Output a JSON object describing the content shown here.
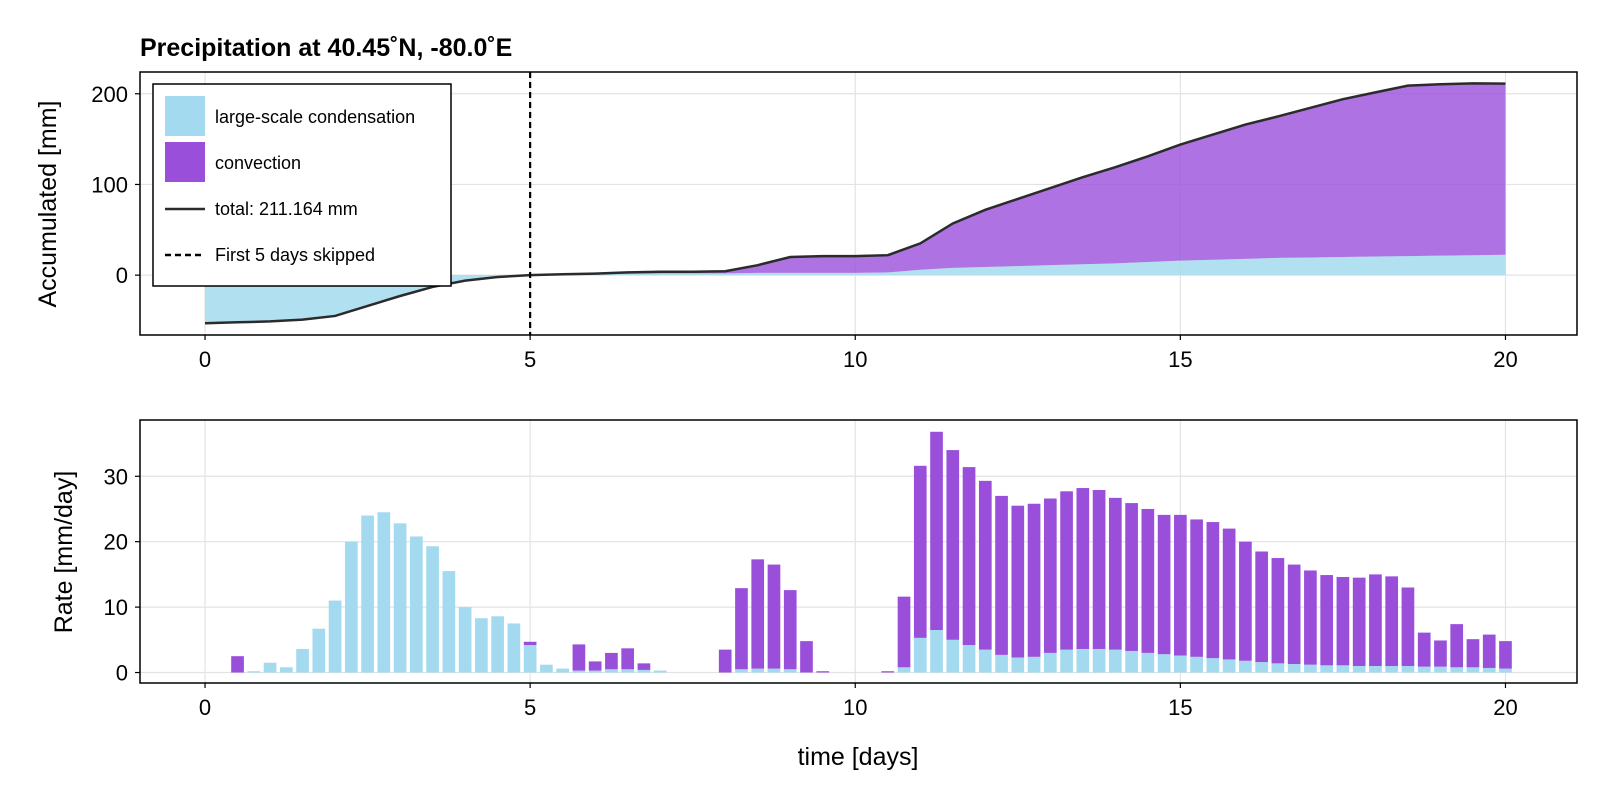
{
  "colors": {
    "large_scale": "#a3daef",
    "convection": "#9a4fdb",
    "total_line": "#2b2b2b",
    "grid": "#e3e3e3"
  },
  "chart_data": [
    {
      "type": "area",
      "title": "Precipitation at 40.45˚N, -80.0˚E",
      "xlabel": "",
      "ylabel": "Accumulated [mm]",
      "xlim": [
        -1,
        21.1
      ],
      "ylim": [
        -66,
        224
      ],
      "xticks": [
        "0",
        "5",
        "10",
        "15",
        "20"
      ],
      "yticks": [
        "0",
        "100",
        "200"
      ],
      "grid": true,
      "legend_position": "top-left",
      "x": [
        0,
        0.5,
        1,
        1.5,
        2,
        2.5,
        3,
        3.5,
        4,
        4.5,
        5,
        5.5,
        6,
        6.5,
        7,
        7.5,
        8,
        8.5,
        9,
        9.5,
        10,
        10.5,
        11,
        11.5,
        12,
        12.5,
        13,
        13.5,
        14,
        14.5,
        15,
        15.5,
        16,
        16.5,
        17,
        17.5,
        18,
        18.5,
        19,
        19.5,
        20
      ],
      "series": [
        {
          "name": "large-scale condensation",
          "kind": "area",
          "values": [
            -53,
            -52,
            -51,
            -49,
            -45,
            -34,
            -23,
            -13,
            -6,
            -2,
            0,
            0.5,
            1,
            1.5,
            2,
            2,
            2,
            2.5,
            2.5,
            2.5,
            2.5,
            3,
            6,
            8,
            9,
            10,
            11,
            12,
            13,
            14.5,
            16,
            17,
            18,
            19,
            19.5,
            20,
            20.5,
            21,
            21.5,
            22,
            22.5
          ]
        },
        {
          "name": "convection",
          "kind": "area",
          "values": [
            0,
            0,
            0,
            0,
            0,
            0,
            0,
            0,
            0,
            0,
            0,
            0.5,
            0.7,
            1.5,
            1.7,
            1.8,
            2.3,
            8.5,
            17.5,
            18.5,
            18.5,
            19,
            29,
            49,
            63,
            74,
            85,
            96,
            106,
            116.5,
            128,
            138,
            148,
            156,
            165,
            174,
            181,
            188,
            189,
            189.5,
            188.664
          ]
        },
        {
          "name": "total: 211.164 mm",
          "kind": "line",
          "values": [
            -53,
            -52,
            -51,
            -49,
            -45,
            -34,
            -23,
            -13,
            -6,
            -2,
            0,
            1,
            1.7,
            3,
            3.7,
            3.8,
            4.3,
            11,
            20,
            21,
            21,
            22,
            35,
            57,
            72,
            84,
            96,
            108,
            119,
            131,
            144,
            155,
            166,
            175,
            184.5,
            194,
            201.5,
            209,
            210.5,
            211.5,
            211.164
          ]
        }
      ],
      "annotation": {
        "name": "First 5 days skipped",
        "x": 5,
        "style": "dashed-vertical"
      }
    },
    {
      "type": "bar",
      "title": "",
      "xlabel": "time [days]",
      "ylabel": "Rate [mm/day]",
      "xlim": [
        -1,
        21.1
      ],
      "ylim": [
        -1.6,
        38.6
      ],
      "xticks": [
        "0",
        "5",
        "10",
        "15",
        "20"
      ],
      "yticks": [
        "0",
        "10",
        "20",
        "30"
      ],
      "grid": true,
      "stacked": true,
      "x": [
        0.5,
        0.75,
        1,
        1.25,
        1.5,
        1.75,
        2,
        2.25,
        2.5,
        2.75,
        3,
        3.25,
        3.5,
        3.75,
        4,
        4.25,
        4.5,
        4.75,
        5,
        5.25,
        5.5,
        5.75,
        6,
        6.25,
        6.5,
        6.75,
        7,
        7.25,
        7.5,
        7.75,
        8,
        8.25,
        8.5,
        8.75,
        9,
        9.25,
        9.5,
        9.75,
        10,
        10.25,
        10.5,
        10.75,
        11,
        11.25,
        11.5,
        11.75,
        12,
        12.25,
        12.5,
        12.75,
        13,
        13.25,
        13.5,
        13.75,
        14,
        14.25,
        14.5,
        14.75,
        15,
        15.25,
        15.5,
        15.75,
        16,
        16.25,
        16.5,
        16.75,
        17,
        17.25,
        17.5,
        17.75,
        18,
        18.25,
        18.5,
        18.75,
        19,
        19.25,
        19.5,
        19.75,
        20
      ],
      "series": [
        {
          "name": "large-scale condensation",
          "values": [
            0,
            0.2,
            1.5,
            0.8,
            3.6,
            6.7,
            11,
            20,
            24,
            24.5,
            22.8,
            20.8,
            19.3,
            15.5,
            10,
            8.3,
            8.6,
            7.5,
            4.2,
            1.2,
            0.6,
            0.3,
            0.3,
            0.5,
            0.5,
            0.4,
            0.3,
            0,
            0,
            0,
            0,
            0.5,
            0.6,
            0.6,
            0.5,
            0,
            0,
            0,
            0,
            0,
            0,
            0.8,
            5.3,
            6.5,
            5,
            4.2,
            3.5,
            2.7,
            2.3,
            2.4,
            3,
            3.5,
            3.6,
            3.6,
            3.5,
            3.3,
            3,
            2.8,
            2.6,
            2.4,
            2.2,
            2,
            1.8,
            1.6,
            1.4,
            1.3,
            1.2,
            1.1,
            1.1,
            1,
            1,
            1,
            1,
            0.9,
            0.9,
            0.8,
            0.8,
            0.7,
            0.6
          ]
        },
        {
          "name": "convection",
          "values": [
            2.5,
            0,
            0,
            0,
            0,
            0,
            0,
            0,
            0,
            0,
            0,
            0,
            0,
            0,
            0,
            0,
            0,
            0,
            0.5,
            0,
            0,
            4,
            1.4,
            2.5,
            3.2,
            1,
            0,
            0,
            0,
            0,
            3.5,
            12.4,
            16.7,
            15.9,
            12.1,
            4.8,
            0.2,
            0,
            0,
            0,
            0.2,
            10.8,
            26.3,
            30.3,
            29.0,
            27.2,
            25.8,
            24.3,
            23.2,
            23.4,
            23.6,
            24.2,
            24.6,
            24.3,
            23.2,
            22.6,
            22.0,
            21.3,
            21.5,
            21.0,
            20.8,
            20.0,
            18.2,
            16.9,
            16.1,
            15.2,
            14.4,
            13.8,
            13.5,
            13.5,
            14.0,
            13.7,
            12.0,
            5.2,
            4.0,
            6.6,
            4.3,
            5.1,
            4.2
          ]
        }
      ]
    }
  ],
  "legend": {
    "items": [
      {
        "label": "large-scale condensation",
        "kind": "patch",
        "color_key": "large_scale"
      },
      {
        "label": "convection",
        "kind": "patch",
        "color_key": "convection"
      },
      {
        "label": "total: 211.164 mm",
        "kind": "line"
      },
      {
        "label": "First 5 days skipped",
        "kind": "dashed"
      }
    ]
  }
}
